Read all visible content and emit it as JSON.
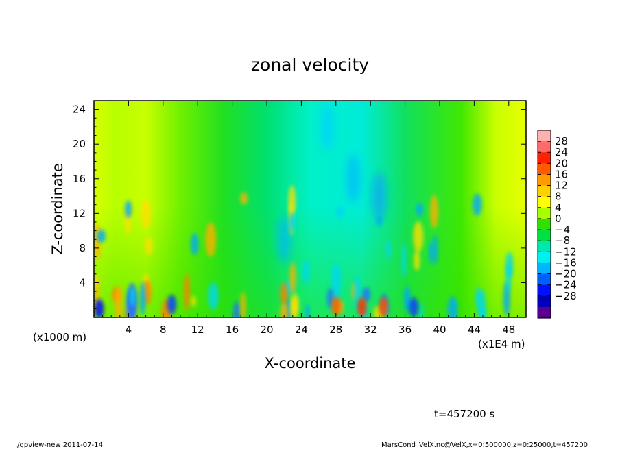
{
  "chart_data": {
    "type": "heatmap",
    "title": "zonal velocity",
    "xlabel": "X-coordinate",
    "ylabel": "Z-coordinate",
    "x_unit_note": "(x1E4 m)",
    "y_unit_note": "(x1000 m)",
    "xlim": [
      0,
      50
    ],
    "ylim": [
      0,
      25
    ],
    "x_ticks": [
      4,
      8,
      12,
      16,
      20,
      24,
      28,
      32,
      36,
      40,
      44,
      48
    ],
    "y_ticks": [
      4,
      8,
      12,
      16,
      20,
      24
    ],
    "colorbar": {
      "labels": [
        "28",
        "24",
        "20",
        "16",
        "12",
        "8",
        "4",
        "0",
        "−4",
        "−8",
        "−12",
        "−16",
        "−20",
        "−24",
        "−28"
      ],
      "colors": [
        "#ffb0b0",
        "#ff6a6a",
        "#ff2200",
        "#ff5a00",
        "#ff9a00",
        "#ffd000",
        "#ffff00",
        "#a8ff00",
        "#30e000",
        "#00e040",
        "#00e8b0",
        "#00f0f0",
        "#00b4ff",
        "#0060ff",
        "#0010ff",
        "#0000b8",
        "#5a0090"
      ]
    },
    "grid": false,
    "time_label": "t=457200 s"
  },
  "footer": {
    "left": "./gpview-new  2011-07-14",
    "right": "MarsCond_VelX.nc@VelX,x=0:500000,z=0:25000,t=457200"
  }
}
